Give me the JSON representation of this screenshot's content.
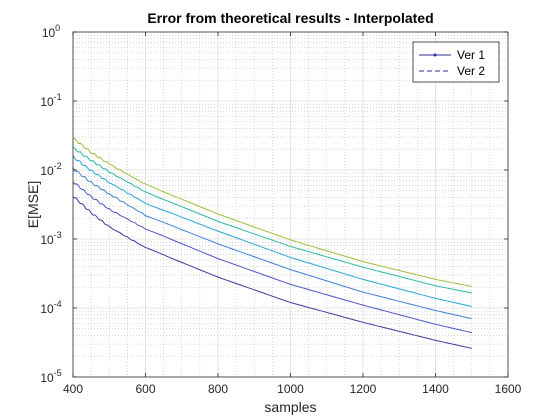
{
  "chart_data": {
    "type": "line",
    "title": "Error from theoretical results - Interpolated",
    "xlabel": "samples",
    "ylabel": "E[MSE]",
    "xlim": [
      400,
      1600
    ],
    "ylim": [
      1e-05,
      1
    ],
    "yscale": "log",
    "grid": "on (major and minor)",
    "legend_position": "top-right",
    "x_ticks": [
      400,
      600,
      800,
      1000,
      1200,
      1400,
      1600
    ],
    "y_ticks": [
      1e-05,
      0.0001,
      0.001,
      0.01,
      0.1,
      1
    ],
    "y_tick_labels": [
      {
        "base": "10",
        "exp": "-5"
      },
      {
        "base": "10",
        "exp": "-4"
      },
      {
        "base": "10",
        "exp": "-3"
      },
      {
        "base": "10",
        "exp": "-2"
      },
      {
        "base": "10",
        "exp": "-1"
      },
      {
        "base": "10",
        "exp": "0"
      }
    ],
    "legend": [
      {
        "label": "Ver 1",
        "color": "#2f2f9c",
        "style": "solid-dot"
      },
      {
        "label": "Ver 2",
        "color": "#2f2f9c",
        "style": "dashed"
      }
    ],
    "series": [
      {
        "color": "#3b3b9e",
        "x": [
          400,
          450,
          500,
          600,
          800,
          1000,
          1200,
          1400,
          1500
        ],
        "y": [
          0.0042,
          0.0024,
          0.0015,
          0.00075,
          0.00028,
          0.00012,
          6.2e-05,
          3.4e-05,
          2.6e-05
        ]
      },
      {
        "color": "#4a55c8",
        "x": [
          400,
          450,
          500,
          600,
          800,
          1000,
          1200,
          1400,
          1500
        ],
        "y": [
          0.0068,
          0.0041,
          0.0027,
          0.0014,
          0.00052,
          0.00022,
          0.00011,
          5.8e-05,
          4.4e-05
        ]
      },
      {
        "color": "#3f7fd6",
        "x": [
          400,
          450,
          500,
          600,
          800,
          1000,
          1200,
          1400,
          1500
        ],
        "y": [
          0.0105,
          0.0066,
          0.0045,
          0.0022,
          0.00085,
          0.00036,
          0.00017,
          9.2e-05,
          7e-05
        ]
      },
      {
        "color": "#22a7d6",
        "x": [
          400,
          450,
          500,
          600,
          800,
          1000,
          1200,
          1400,
          1500
        ],
        "y": [
          0.0155,
          0.0098,
          0.0066,
          0.0033,
          0.0013,
          0.00054,
          0.00026,
          0.000138,
          0.000105
        ]
      },
      {
        "color": "#2bb8a0",
        "x": [
          400,
          450,
          500,
          600,
          800,
          1000,
          1200,
          1400,
          1500
        ],
        "y": [
          0.021,
          0.0138,
          0.0094,
          0.0048,
          0.0018,
          0.00078,
          0.00039,
          0.00021,
          0.000165
        ]
      },
      {
        "color": "#9fbf3a",
        "x": [
          400,
          450,
          500,
          600,
          800,
          1000,
          1200,
          1400,
          1500
        ],
        "y": [
          0.029,
          0.018,
          0.0122,
          0.0062,
          0.0023,
          0.00097,
          0.00047,
          0.00026,
          0.000205
        ]
      }
    ]
  }
}
